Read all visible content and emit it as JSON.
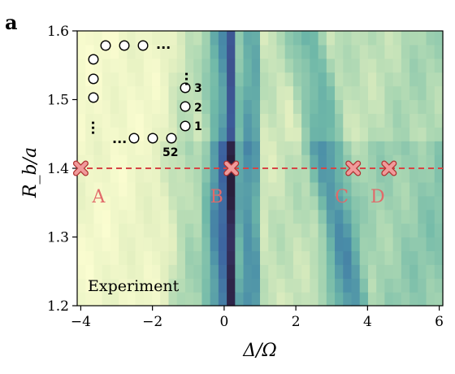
{
  "panel_letter": "a",
  "chart_data": {
    "type": "heatmap",
    "xlabel": "Δ/Ω",
    "ylabel": "R_b/a",
    "xlim": [
      -4.1,
      6.1
    ],
    "ylim": [
      1.2,
      1.6
    ],
    "xticks": [
      -4,
      -2,
      0,
      2,
      4,
      6
    ],
    "xtick_labels": [
      "−4",
      "−2",
      "0",
      "2",
      "4",
      "6"
    ],
    "yticks": [
      1.2,
      1.3,
      1.4,
      1.5,
      1.6
    ],
    "ytick_labels": [
      "1.2",
      "1.3",
      "1.4",
      "1.5",
      "1.6"
    ],
    "colormap": [
      "#fbfdd0",
      "#e2efc0",
      "#a9d6b2",
      "#6fb8a8",
      "#4a8ea8",
      "#3c62a0",
      "#3e3e7a",
      "#2a1f3c"
    ],
    "dip_center": 0.15,
    "annotation": "Experiment",
    "cut_line": {
      "y": 1.4,
      "color": "#d64545"
    },
    "markers": [
      {
        "label": "A",
        "x": -4.0,
        "y": 1.4
      },
      {
        "label": "B",
        "x": 0.2,
        "y": 1.4
      },
      {
        "label": "C",
        "x": 3.6,
        "y": 1.4
      },
      {
        "label": "D",
        "x": 4.6,
        "y": 1.4
      }
    ],
    "chain_labels": [
      "1",
      "2",
      "3",
      "52"
    ],
    "ellipsis": "..."
  }
}
